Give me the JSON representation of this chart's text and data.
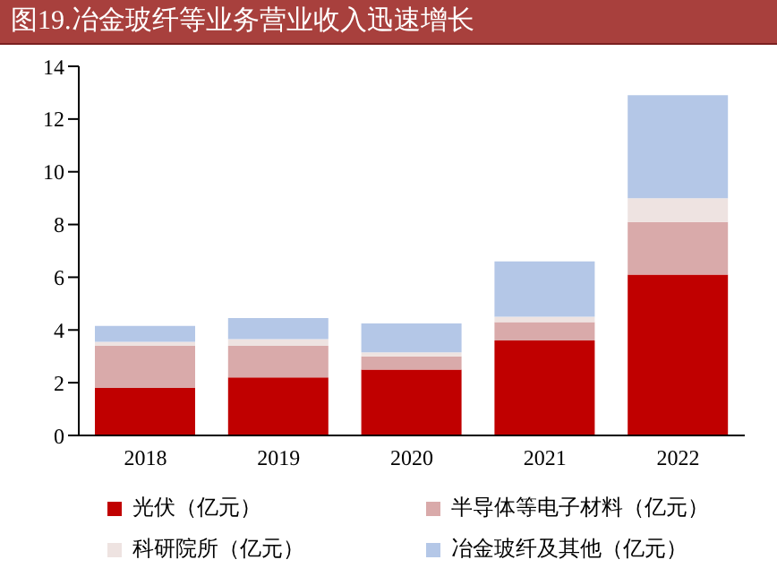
{
  "chart_data": {
    "type": "bar",
    "title": "图19.冶金玻纤等业务营业收入迅速增长",
    "categories": [
      "2018",
      "2019",
      "2020",
      "2021",
      "2022"
    ],
    "series": [
      {
        "name": "光伏（亿元）",
        "color": "#c00000",
        "values": [
          1.8,
          2.2,
          2.5,
          3.6,
          6.1
        ]
      },
      {
        "name": "半导体等电子材料（亿元）",
        "color": "#d9aaaa",
        "values": [
          1.6,
          1.2,
          0.5,
          0.7,
          2.0
        ]
      },
      {
        "name": "科研院所（亿元）",
        "color": "#eee3e1",
        "values": [
          0.15,
          0.25,
          0.15,
          0.2,
          0.9
        ]
      },
      {
        "name": "冶金玻纤及其他（亿元）",
        "color": "#b4c7e7",
        "values": [
          0.6,
          0.8,
          1.1,
          2.1,
          3.9
        ]
      }
    ],
    "stacked": true,
    "ylim": [
      0,
      14
    ],
    "yticks": [
      0,
      2,
      4,
      6,
      8,
      10,
      12,
      14
    ],
    "grid": false,
    "legend": "bottom"
  }
}
